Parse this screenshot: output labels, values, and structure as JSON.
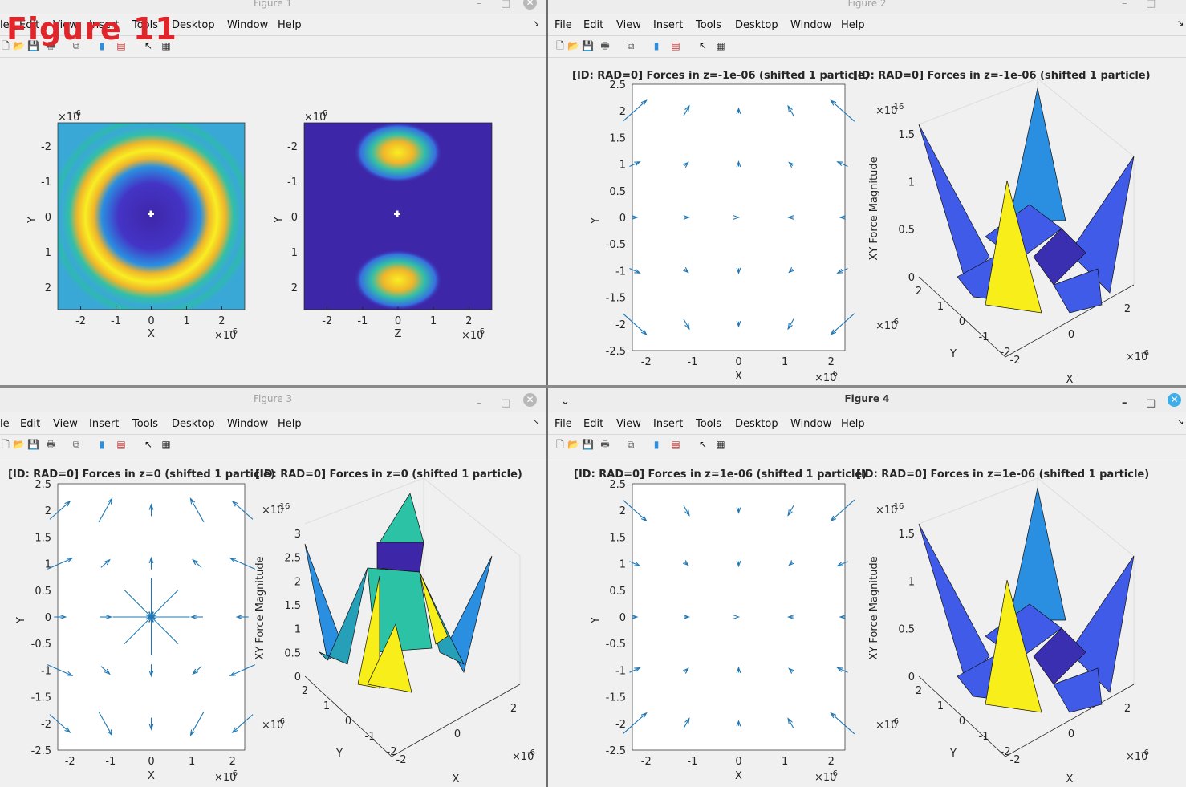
{
  "overlay_label": "Figure 11",
  "menu": [
    "File",
    "Edit",
    "View",
    "Insert",
    "Tools",
    "Desktop",
    "Window",
    "Help"
  ],
  "menu_cut": [
    "le",
    "Edit",
    "View",
    "Insert",
    "Tools",
    "Desktop",
    "Window",
    "Help"
  ],
  "figures": [
    {
      "title": "Figure 1",
      "active": false
    },
    {
      "title": "Figure 2",
      "active": false
    },
    {
      "title": "Figure 3",
      "active": false
    },
    {
      "title": "Figure 4",
      "active": true
    }
  ],
  "axes": {
    "exp_label": "×10",
    "exp_value": "-6",
    "exp16_value": "-16",
    "x": "X",
    "y": "Y",
    "z": "Z",
    "xy_force": "XY Force Magnitude",
    "x_ticks": [
      "-2",
      "-1",
      "0",
      "1",
      "2"
    ],
    "y_ticks_img": [
      "-2",
      "-1",
      "0",
      "1",
      "2"
    ],
    "q_y_ticks": [
      "2.5",
      "2",
      "1.5",
      "1",
      "0.5",
      "0",
      "-0.5",
      "-1",
      "-1.5",
      "-2",
      "-2.5"
    ],
    "surf_z_ticks_a": [
      "1.5",
      "1",
      "0.5",
      "0"
    ],
    "surf_z_ticks_b": [
      "3",
      "2.5",
      "2",
      "1.5",
      "1",
      "0.5",
      "0"
    ],
    "surf_xy_ticks": [
      "2",
      "1",
      "0",
      "-1",
      "-2"
    ],
    "surf_x_ticks": [
      "-2",
      "0",
      "2"
    ]
  },
  "titles": {
    "f2_quiver": "[ID: RAD=0] Forces in z=-1e-06 (shifted 1 particle)",
    "f2_surf": "[ID: RAD=0] Forces in z=-1e-06 (shifted 1 particle)",
    "f3_quiver": "[ID: RAD=0] Forces in z=0 (shifted 1 particle)",
    "f3_surf": "[ID: RAD=0] Forces in z=0 (shifted 1 particle)",
    "f4_quiver": "[ID: RAD=0] Forces in z=1e-06 (shifted 1 particle)",
    "f4_surf": "[ID: RAD=0] Forces in z=1e-06 (shifted 1 particle)"
  },
  "colors": {
    "quiver": "#1f77b4",
    "dark": "#3e26a8",
    "mid": "#2cc2a6",
    "yellow": "#f7ee1a",
    "blue": "#3f5be8"
  }
}
